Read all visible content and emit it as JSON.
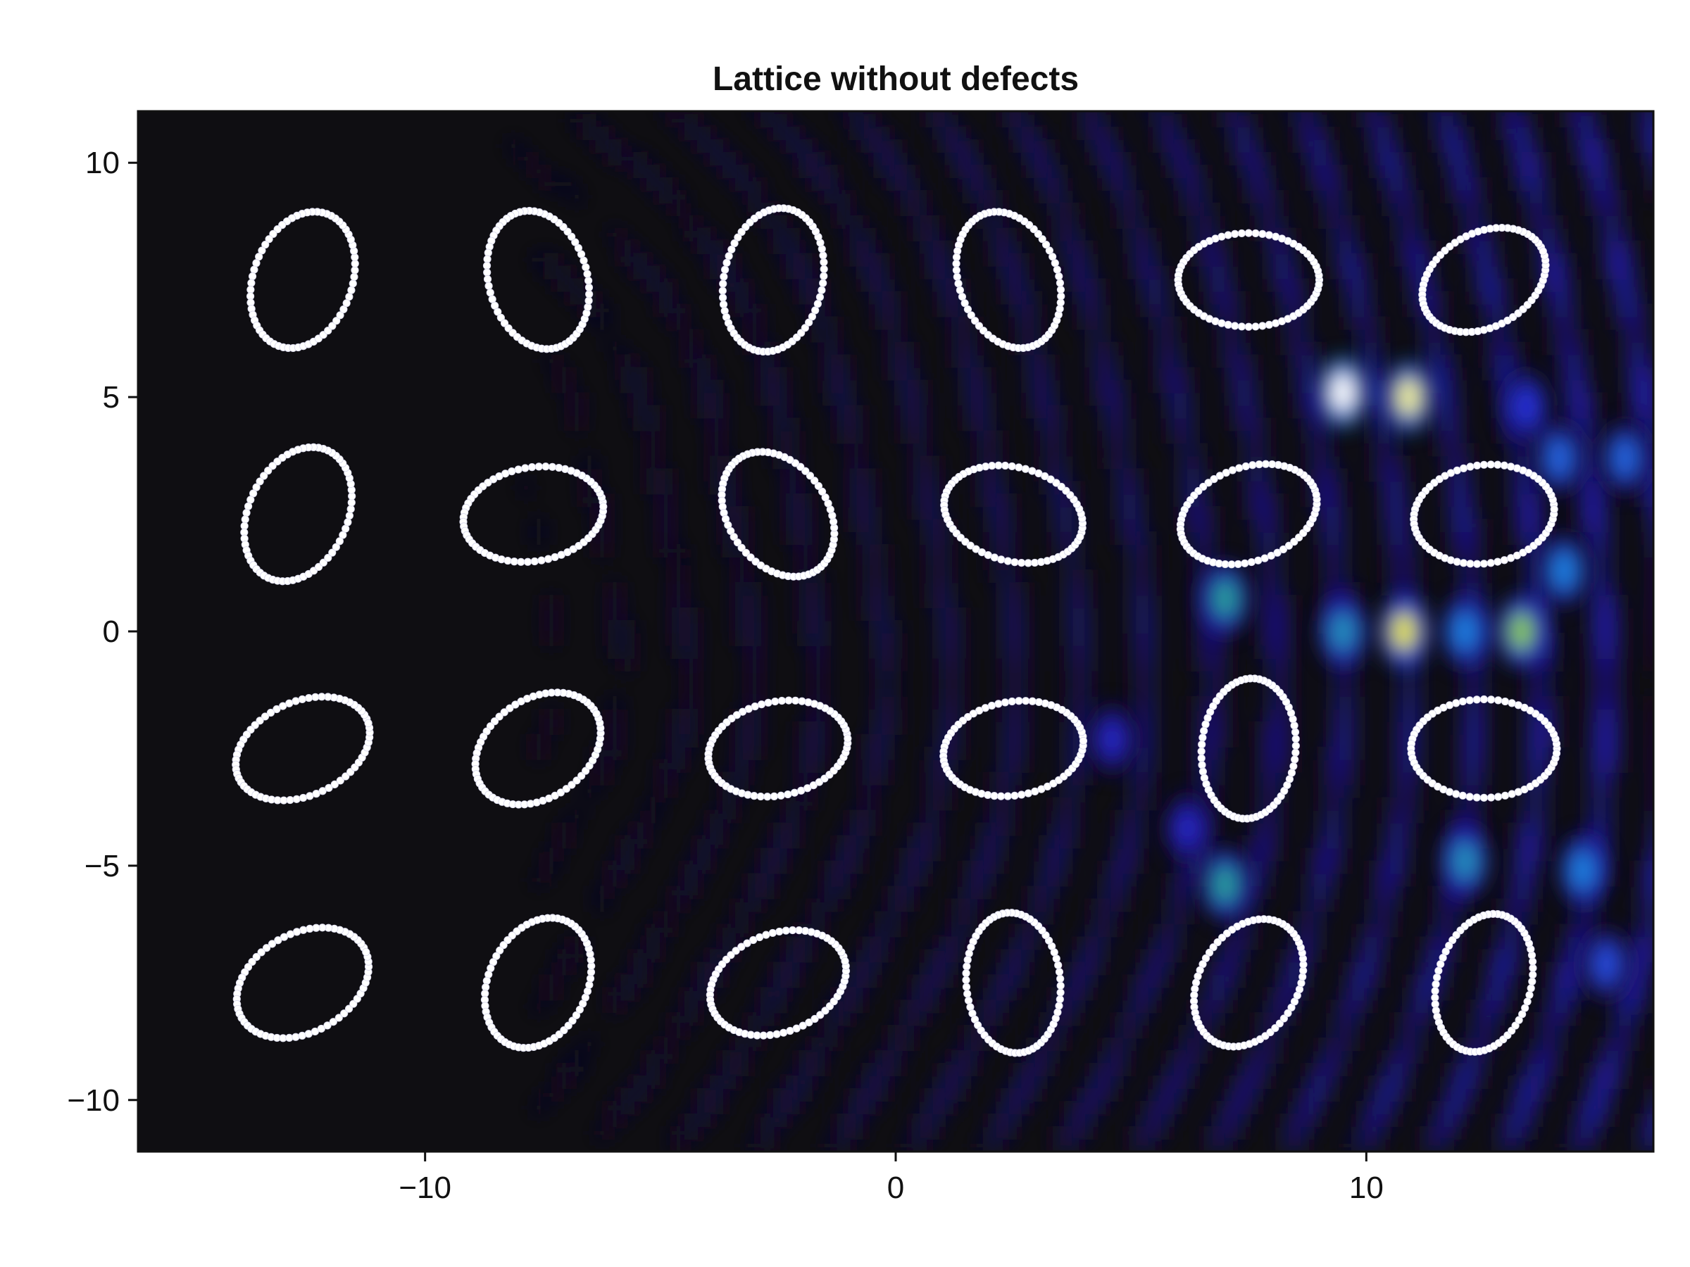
{
  "chart_data": {
    "type": "heatmap",
    "title": "Lattice without defects",
    "xlabel": "",
    "ylabel": "",
    "xlim": [
      -16.1,
      16.1
    ],
    "ylim": [
      -11.1,
      11.1
    ],
    "x_ticks": [
      {
        "value": -10,
        "label": "−10"
      },
      {
        "value": 0,
        "label": "0"
      },
      {
        "value": 10,
        "label": "10"
      }
    ],
    "y_ticks": [
      {
        "value": 10,
        "label": "10"
      },
      {
        "value": 5,
        "label": "5"
      },
      {
        "value": 0,
        "label": "0"
      },
      {
        "value": -5,
        "label": "−5"
      },
      {
        "value": -10,
        "label": "−10"
      }
    ],
    "colormap": [
      "#0f0e12",
      "#1a1470",
      "#2929d6",
      "#1f7fe0",
      "#2eb36a",
      "#e3e21e",
      "#ffffff"
    ],
    "scatterers": [
      {
        "cx": -12.6,
        "cy": 7.5,
        "rx": 1.05,
        "ry": 1.5,
        "angle": -20
      },
      {
        "cx": -7.6,
        "cy": 7.5,
        "rx": 1.05,
        "ry": 1.5,
        "angle": 15
      },
      {
        "cx": -2.6,
        "cy": 7.5,
        "rx": 1.05,
        "ry": 1.55,
        "angle": -12
      },
      {
        "cx": 2.4,
        "cy": 7.5,
        "rx": 1.05,
        "ry": 1.5,
        "angle": 20
      },
      {
        "cx": 7.5,
        "cy": 7.5,
        "rx": 1.5,
        "ry": 1.0,
        "angle": 0
      },
      {
        "cx": 12.5,
        "cy": 7.5,
        "rx": 1.4,
        "ry": 1.0,
        "angle": 30
      },
      {
        "cx": -12.7,
        "cy": 2.5,
        "rx": 1.05,
        "ry": 1.5,
        "angle": -25
      },
      {
        "cx": -7.7,
        "cy": 2.5,
        "rx": 1.5,
        "ry": 1.0,
        "angle": 10
      },
      {
        "cx": -2.5,
        "cy": 2.5,
        "rx": 1.05,
        "ry": 1.45,
        "angle": 35
      },
      {
        "cx": 2.5,
        "cy": 2.5,
        "rx": 1.5,
        "ry": 1.0,
        "angle": -15
      },
      {
        "cx": 7.5,
        "cy": 2.5,
        "rx": 1.5,
        "ry": 1.0,
        "angle": 20
      },
      {
        "cx": 12.5,
        "cy": 2.5,
        "rx": 1.5,
        "ry": 1.05,
        "angle": 8
      },
      {
        "cx": -12.6,
        "cy": -2.5,
        "rx": 1.5,
        "ry": 1.0,
        "angle": 25
      },
      {
        "cx": -7.6,
        "cy": -2.5,
        "rx": 1.45,
        "ry": 1.05,
        "angle": 35
      },
      {
        "cx": -2.5,
        "cy": -2.5,
        "rx": 1.5,
        "ry": 1.0,
        "angle": 12
      },
      {
        "cx": 2.5,
        "cy": -2.5,
        "rx": 1.5,
        "ry": 1.0,
        "angle": 10
      },
      {
        "cx": 7.5,
        "cy": -2.5,
        "rx": 1.0,
        "ry": 1.5,
        "angle": -5
      },
      {
        "cx": 12.5,
        "cy": -2.5,
        "rx": 1.55,
        "ry": 1.05,
        "angle": 0
      },
      {
        "cx": -12.6,
        "cy": -7.5,
        "rx": 1.5,
        "ry": 1.05,
        "angle": 30
      },
      {
        "cx": -7.6,
        "cy": -7.5,
        "rx": 1.05,
        "ry": 1.45,
        "angle": -25
      },
      {
        "cx": -2.5,
        "cy": -7.5,
        "rx": 1.5,
        "ry": 1.05,
        "angle": 22
      },
      {
        "cx": 2.5,
        "cy": -7.5,
        "rx": 1.0,
        "ry": 1.5,
        "angle": 5
      },
      {
        "cx": 7.5,
        "cy": -7.5,
        "rx": 1.05,
        "ry": 1.45,
        "angle": -30
      },
      {
        "cx": 12.5,
        "cy": -7.5,
        "rx": 1.0,
        "ry": 1.5,
        "angle": -15
      }
    ],
    "field_hotspots": [
      {
        "x": 9.5,
        "y": 5.1,
        "intensity": 1.0
      },
      {
        "x": 10.9,
        "y": 5.0,
        "intensity": 0.92
      },
      {
        "x": 10.8,
        "y": 0.0,
        "intensity": 0.85
      },
      {
        "x": 13.3,
        "y": 0.0,
        "intensity": 0.75
      },
      {
        "x": 7.0,
        "y": 0.7,
        "intensity": 0.6
      },
      {
        "x": 9.5,
        "y": 0.0,
        "intensity": 0.55
      },
      {
        "x": 12.1,
        "y": 0.0,
        "intensity": 0.5
      },
      {
        "x": 7.0,
        "y": -5.4,
        "intensity": 0.6
      },
      {
        "x": 12.1,
        "y": -4.9,
        "intensity": 0.55
      },
      {
        "x": 14.6,
        "y": -5.1,
        "intensity": 0.5
      },
      {
        "x": 14.2,
        "y": 1.3,
        "intensity": 0.5
      },
      {
        "x": 14.1,
        "y": 3.7,
        "intensity": 0.45
      },
      {
        "x": 15.5,
        "y": 3.7,
        "intensity": 0.45
      },
      {
        "x": 15.1,
        "y": -7.1,
        "intensity": 0.4
      },
      {
        "x": 13.4,
        "y": 4.8,
        "intensity": 0.35
      },
      {
        "x": 4.6,
        "y": -2.3,
        "intensity": 0.3
      },
      {
        "x": 6.2,
        "y": -4.2,
        "intensity": 0.3
      }
    ]
  }
}
